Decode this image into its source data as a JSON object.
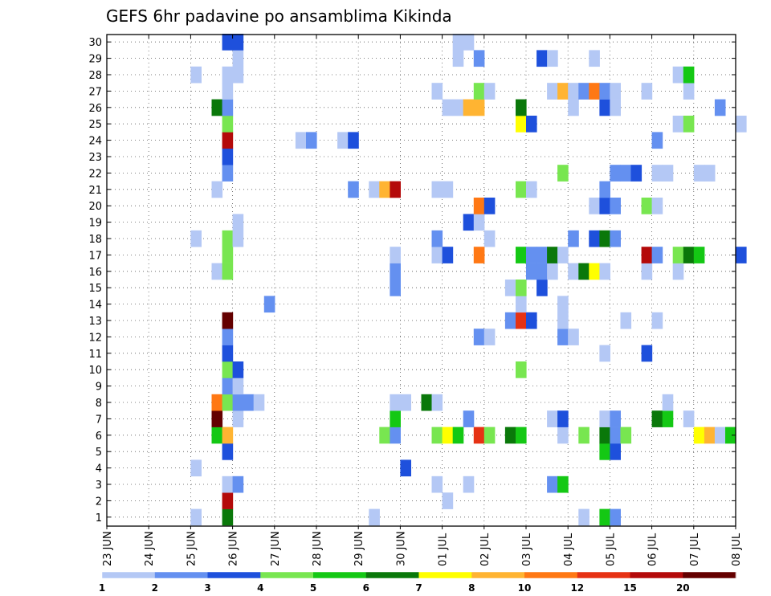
{
  "chart_data": {
    "type": "heatmap",
    "title": "GEFS 6hr padavine po ansamblima Kikinda",
    "xlabel": "",
    "ylabel": "",
    "ylim": [
      1,
      30
    ],
    "x_ticks": [
      "23 JUN",
      "24 JUN",
      "25 JUN",
      "26 JUN",
      "27 JUN",
      "28 JUN",
      "29 JUN",
      "30 JUN",
      "01 JUL",
      "02 JUL",
      "03 JUL",
      "04 JUL",
      "05 JUL",
      "06 JUL",
      "07 JUL",
      "08 JUL"
    ],
    "y_ticks": [
      1,
      2,
      3,
      4,
      5,
      6,
      7,
      8,
      9,
      10,
      11,
      12,
      13,
      14,
      15,
      16,
      17,
      18,
      19,
      20,
      21,
      22,
      23,
      24,
      25,
      26,
      27,
      28,
      29,
      30
    ],
    "x_unit_note": "x = fractional day offset from 23 JUN 00z in 6-hour steps",
    "colorbar": {
      "labels": [
        "1",
        "2",
        "3",
        "4",
        "5",
        "6",
        "7",
        "8",
        "10",
        "12",
        "15",
        "20"
      ],
      "colors": [
        "#b4c8f5",
        "#6490f0",
        "#1e50dc",
        "#78e650",
        "#14c814",
        "#0a780a",
        "#ffff00",
        "#ffb432",
        "#ff7814",
        "#e63214",
        "#b40a0a",
        "#640000"
      ]
    },
    "cells": [
      {
        "m": 1,
        "x": 2.0,
        "v": 1
      },
      {
        "m": 1,
        "x": 2.75,
        "v": 6
      },
      {
        "m": 1,
        "x": 6.25,
        "v": 1
      },
      {
        "m": 1,
        "x": 11.25,
        "v": 1
      },
      {
        "m": 1,
        "x": 11.75,
        "v": 5
      },
      {
        "m": 1,
        "x": 12.0,
        "v": 2
      },
      {
        "m": 2,
        "x": 2.75,
        "v": 15
      },
      {
        "m": 2,
        "x": 8.0,
        "v": 1
      },
      {
        "m": 3,
        "x": 2.75,
        "v": 1
      },
      {
        "m": 3,
        "x": 3.0,
        "v": 2
      },
      {
        "m": 3,
        "x": 7.75,
        "v": 1
      },
      {
        "m": 3,
        "x": 8.5,
        "v": 1
      },
      {
        "m": 3,
        "x": 10.5,
        "v": 2
      },
      {
        "m": 3,
        "x": 10.75,
        "v": 5
      },
      {
        "m": 4,
        "x": 2.0,
        "v": 1
      },
      {
        "m": 4,
        "x": 7.0,
        "v": 3
      },
      {
        "m": 5,
        "x": 2.75,
        "v": 3
      },
      {
        "m": 5,
        "x": 11.75,
        "v": 5
      },
      {
        "m": 5,
        "x": 12.0,
        "v": 3
      },
      {
        "m": 6,
        "x": 2.5,
        "v": 5
      },
      {
        "m": 6,
        "x": 2.75,
        "v": 8
      },
      {
        "m": 6,
        "x": 6.5,
        "v": 4
      },
      {
        "m": 6,
        "x": 6.75,
        "v": 2
      },
      {
        "m": 6,
        "x": 7.75,
        "v": 4
      },
      {
        "m": 6,
        "x": 8.0,
        "v": 7
      },
      {
        "m": 6,
        "x": 8.25,
        "v": 5
      },
      {
        "m": 6,
        "x": 8.75,
        "v": 12
      },
      {
        "m": 6,
        "x": 9.0,
        "v": 4
      },
      {
        "m": 6,
        "x": 9.5,
        "v": 6
      },
      {
        "m": 6,
        "x": 9.75,
        "v": 5
      },
      {
        "m": 6,
        "x": 10.75,
        "v": 1
      },
      {
        "m": 6,
        "x": 11.25,
        "v": 4
      },
      {
        "m": 6,
        "x": 11.75,
        "v": 6
      },
      {
        "m": 6,
        "x": 12.0,
        "v": 2
      },
      {
        "m": 6,
        "x": 12.25,
        "v": 4
      },
      {
        "m": 6,
        "x": 14.0,
        "v": 7
      },
      {
        "m": 6,
        "x": 14.25,
        "v": 8
      },
      {
        "m": 6,
        "x": 14.5,
        "v": 1
      },
      {
        "m": 6,
        "x": 14.75,
        "v": 5
      },
      {
        "m": 7,
        "x": 2.5,
        "v": 20
      },
      {
        "m": 7,
        "x": 3.0,
        "v": 1
      },
      {
        "m": 7,
        "x": 6.75,
        "v": 5
      },
      {
        "m": 7,
        "x": 8.5,
        "v": 2
      },
      {
        "m": 7,
        "x": 10.5,
        "v": 1
      },
      {
        "m": 7,
        "x": 10.75,
        "v": 3
      },
      {
        "m": 7,
        "x": 11.75,
        "v": 1
      },
      {
        "m": 7,
        "x": 12.0,
        "v": 2
      },
      {
        "m": 7,
        "x": 13.0,
        "v": 6
      },
      {
        "m": 7,
        "x": 13.25,
        "v": 5
      },
      {
        "m": 7,
        "x": 13.75,
        "v": 1
      },
      {
        "m": 8,
        "x": 2.5,
        "v": 10
      },
      {
        "m": 8,
        "x": 2.75,
        "v": 4
      },
      {
        "m": 8,
        "x": 3.0,
        "v": 2
      },
      {
        "m": 8,
        "x": 3.25,
        "v": 2
      },
      {
        "m": 8,
        "x": 3.5,
        "v": 1
      },
      {
        "m": 8,
        "x": 6.75,
        "v": 1
      },
      {
        "m": 8,
        "x": 7.0,
        "v": 1
      },
      {
        "m": 8,
        "x": 7.5,
        "v": 6
      },
      {
        "m": 8,
        "x": 7.75,
        "v": 1
      },
      {
        "m": 8,
        "x": 13.25,
        "v": 1
      },
      {
        "m": 9,
        "x": 2.75,
        "v": 2
      },
      {
        "m": 9,
        "x": 3.0,
        "v": 1
      },
      {
        "m": 10,
        "x": 2.75,
        "v": 4
      },
      {
        "m": 10,
        "x": 3.0,
        "v": 3
      },
      {
        "m": 10,
        "x": 9.75,
        "v": 4
      },
      {
        "m": 11,
        "x": 2.75,
        "v": 3
      },
      {
        "m": 11,
        "x": 11.75,
        "v": 1
      },
      {
        "m": 11,
        "x": 12.75,
        "v": 3
      },
      {
        "m": 12,
        "x": 2.75,
        "v": 2
      },
      {
        "m": 12,
        "x": 8.75,
        "v": 2
      },
      {
        "m": 12,
        "x": 9.0,
        "v": 1
      },
      {
        "m": 12,
        "x": 10.75,
        "v": 2
      },
      {
        "m": 12,
        "x": 11.0,
        "v": 1
      },
      {
        "m": 13,
        "x": 2.75,
        "v": 20
      },
      {
        "m": 13,
        "x": 9.5,
        "v": 2
      },
      {
        "m": 13,
        "x": 9.75,
        "v": 12
      },
      {
        "m": 13,
        "x": 10.0,
        "v": 3
      },
      {
        "m": 13,
        "x": 10.75,
        "v": 1
      },
      {
        "m": 13,
        "x": 12.25,
        "v": 1
      },
      {
        "m": 13,
        "x": 13.0,
        "v": 1
      },
      {
        "m": 14,
        "x": 3.75,
        "v": 2
      },
      {
        "m": 14,
        "x": 9.75,
        "v": 1
      },
      {
        "m": 14,
        "x": 10.75,
        "v": 1
      },
      {
        "m": 15,
        "x": 6.75,
        "v": 2
      },
      {
        "m": 15,
        "x": 9.5,
        "v": 1
      },
      {
        "m": 15,
        "x": 9.75,
        "v": 4
      },
      {
        "m": 15,
        "x": 10.25,
        "v": 3
      },
      {
        "m": 16,
        "x": 2.5,
        "v": 1
      },
      {
        "m": 16,
        "x": 2.75,
        "v": 4
      },
      {
        "m": 16,
        "x": 6.75,
        "v": 2
      },
      {
        "m": 16,
        "x": 10.0,
        "v": 2
      },
      {
        "m": 16,
        "x": 10.25,
        "v": 2
      },
      {
        "m": 16,
        "x": 10.5,
        "v": 1
      },
      {
        "m": 16,
        "x": 11.0,
        "v": 1
      },
      {
        "m": 16,
        "x": 11.25,
        "v": 6
      },
      {
        "m": 16,
        "x": 11.5,
        "v": 7
      },
      {
        "m": 16,
        "x": 11.75,
        "v": 1
      },
      {
        "m": 16,
        "x": 12.75,
        "v": 1
      },
      {
        "m": 16,
        "x": 13.5,
        "v": 1
      },
      {
        "m": 17,
        "x": 2.75,
        "v": 4
      },
      {
        "m": 17,
        "x": 6.75,
        "v": 1
      },
      {
        "m": 17,
        "x": 7.75,
        "v": 1
      },
      {
        "m": 17,
        "x": 8.0,
        "v": 3
      },
      {
        "m": 17,
        "x": 8.75,
        "v": 10
      },
      {
        "m": 17,
        "x": 9.75,
        "v": 5
      },
      {
        "m": 17,
        "x": 10.0,
        "v": 2
      },
      {
        "m": 17,
        "x": 10.25,
        "v": 2
      },
      {
        "m": 17,
        "x": 10.5,
        "v": 6
      },
      {
        "m": 17,
        "x": 10.75,
        "v": 1
      },
      {
        "m": 17,
        "x": 12.75,
        "v": 15
      },
      {
        "m": 17,
        "x": 13.0,
        "v": 2
      },
      {
        "m": 17,
        "x": 13.5,
        "v": 4
      },
      {
        "m": 17,
        "x": 13.75,
        "v": 6
      },
      {
        "m": 17,
        "x": 14.0,
        "v": 5
      },
      {
        "m": 17,
        "x": 15.0,
        "v": 3
      },
      {
        "m": 18,
        "x": 2.0,
        "v": 1
      },
      {
        "m": 18,
        "x": 2.75,
        "v": 4
      },
      {
        "m": 18,
        "x": 3.0,
        "v": 1
      },
      {
        "m": 18,
        "x": 7.75,
        "v": 2
      },
      {
        "m": 18,
        "x": 9.0,
        "v": 1
      },
      {
        "m": 18,
        "x": 11.0,
        "v": 2
      },
      {
        "m": 18,
        "x": 11.5,
        "v": 3
      },
      {
        "m": 18,
        "x": 11.75,
        "v": 6
      },
      {
        "m": 18,
        "x": 12.0,
        "v": 2
      },
      {
        "m": 19,
        "x": 3.0,
        "v": 1
      },
      {
        "m": 19,
        "x": 8.5,
        "v": 3
      },
      {
        "m": 19,
        "x": 8.75,
        "v": 1
      },
      {
        "m": 20,
        "x": 8.75,
        "v": 10
      },
      {
        "m": 20,
        "x": 9.0,
        "v": 3
      },
      {
        "m": 20,
        "x": 11.5,
        "v": 1
      },
      {
        "m": 20,
        "x": 11.75,
        "v": 3
      },
      {
        "m": 20,
        "x": 12.0,
        "v": 2
      },
      {
        "m": 20,
        "x": 12.75,
        "v": 4
      },
      {
        "m": 20,
        "x": 13.0,
        "v": 1
      },
      {
        "m": 21,
        "x": 2.5,
        "v": 1
      },
      {
        "m": 21,
        "x": 5.75,
        "v": 2
      },
      {
        "m": 21,
        "x": 6.25,
        "v": 1
      },
      {
        "m": 21,
        "x": 6.5,
        "v": 8
      },
      {
        "m": 21,
        "x": 6.75,
        "v": 15
      },
      {
        "m": 21,
        "x": 7.75,
        "v": 1
      },
      {
        "m": 21,
        "x": 8.0,
        "v": 1
      },
      {
        "m": 21,
        "x": 9.75,
        "v": 4
      },
      {
        "m": 21,
        "x": 10.0,
        "v": 1
      },
      {
        "m": 21,
        "x": 11.75,
        "v": 2
      },
      {
        "m": 22,
        "x": 2.75,
        "v": 2
      },
      {
        "m": 22,
        "x": 10.75,
        "v": 4
      },
      {
        "m": 22,
        "x": 12.0,
        "v": 2
      },
      {
        "m": 22,
        "x": 12.25,
        "v": 2
      },
      {
        "m": 22,
        "x": 12.5,
        "v": 3
      },
      {
        "m": 22,
        "x": 13.0,
        "v": 1
      },
      {
        "m": 22,
        "x": 13.25,
        "v": 1
      },
      {
        "m": 22,
        "x": 14.0,
        "v": 1
      },
      {
        "m": 22,
        "x": 14.25,
        "v": 1
      },
      {
        "m": 23,
        "x": 2.75,
        "v": 3
      },
      {
        "m": 24,
        "x": 2.75,
        "v": 15
      },
      {
        "m": 24,
        "x": 4.5,
        "v": 1
      },
      {
        "m": 24,
        "x": 4.75,
        "v": 2
      },
      {
        "m": 24,
        "x": 5.5,
        "v": 1
      },
      {
        "m": 24,
        "x": 5.75,
        "v": 3
      },
      {
        "m": 24,
        "x": 13.0,
        "v": 2
      },
      {
        "m": 25,
        "x": 2.75,
        "v": 4
      },
      {
        "m": 25,
        "x": 9.75,
        "v": 7
      },
      {
        "m": 25,
        "x": 10.0,
        "v": 3
      },
      {
        "m": 25,
        "x": 13.5,
        "v": 1
      },
      {
        "m": 25,
        "x": 13.75,
        "v": 4
      },
      {
        "m": 25,
        "x": 15.0,
        "v": 1
      },
      {
        "m": 26,
        "x": 2.5,
        "v": 6
      },
      {
        "m": 26,
        "x": 2.75,
        "v": 2
      },
      {
        "m": 26,
        "x": 8.0,
        "v": 1
      },
      {
        "m": 26,
        "x": 8.25,
        "v": 1
      },
      {
        "m": 26,
        "x": 8.5,
        "v": 8
      },
      {
        "m": 26,
        "x": 8.75,
        "v": 8
      },
      {
        "m": 26,
        "x": 9.75,
        "v": 6
      },
      {
        "m": 26,
        "x": 11.0,
        "v": 1
      },
      {
        "m": 26,
        "x": 11.75,
        "v": 3
      },
      {
        "m": 26,
        "x": 12.0,
        "v": 1
      },
      {
        "m": 26,
        "x": 14.5,
        "v": 2
      },
      {
        "m": 27,
        "x": 2.75,
        "v": 1
      },
      {
        "m": 27,
        "x": 7.75,
        "v": 1
      },
      {
        "m": 27,
        "x": 8.75,
        "v": 4
      },
      {
        "m": 27,
        "x": 9.0,
        "v": 1
      },
      {
        "m": 27,
        "x": 10.5,
        "v": 1
      },
      {
        "m": 27,
        "x": 10.75,
        "v": 8
      },
      {
        "m": 27,
        "x": 11.0,
        "v": 1
      },
      {
        "m": 27,
        "x": 11.25,
        "v": 2
      },
      {
        "m": 27,
        "x": 11.5,
        "v": 10
      },
      {
        "m": 27,
        "x": 11.75,
        "v": 2
      },
      {
        "m": 27,
        "x": 12.0,
        "v": 1
      },
      {
        "m": 27,
        "x": 12.75,
        "v": 1
      },
      {
        "m": 27,
        "x": 13.75,
        "v": 1
      },
      {
        "m": 28,
        "x": 2.0,
        "v": 1
      },
      {
        "m": 28,
        "x": 2.75,
        "v": 1
      },
      {
        "m": 28,
        "x": 3.0,
        "v": 1
      },
      {
        "m": 28,
        "x": 13.5,
        "v": 1
      },
      {
        "m": 28,
        "x": 13.75,
        "v": 5
      },
      {
        "m": 29,
        "x": 3.0,
        "v": 1
      },
      {
        "m": 29,
        "x": 8.25,
        "v": 1
      },
      {
        "m": 29,
        "x": 8.75,
        "v": 2
      },
      {
        "m": 29,
        "x": 10.25,
        "v": 3
      },
      {
        "m": 29,
        "x": 10.5,
        "v": 1
      },
      {
        "m": 29,
        "x": 11.5,
        "v": 1
      },
      {
        "m": 30,
        "x": 2.75,
        "v": 3
      },
      {
        "m": 30,
        "x": 3.0,
        "v": 3
      },
      {
        "m": 30,
        "x": 8.25,
        "v": 1
      },
      {
        "m": 30,
        "x": 8.5,
        "v": 1
      }
    ],
    "grid": true,
    "legend": "bottom colorbar"
  }
}
